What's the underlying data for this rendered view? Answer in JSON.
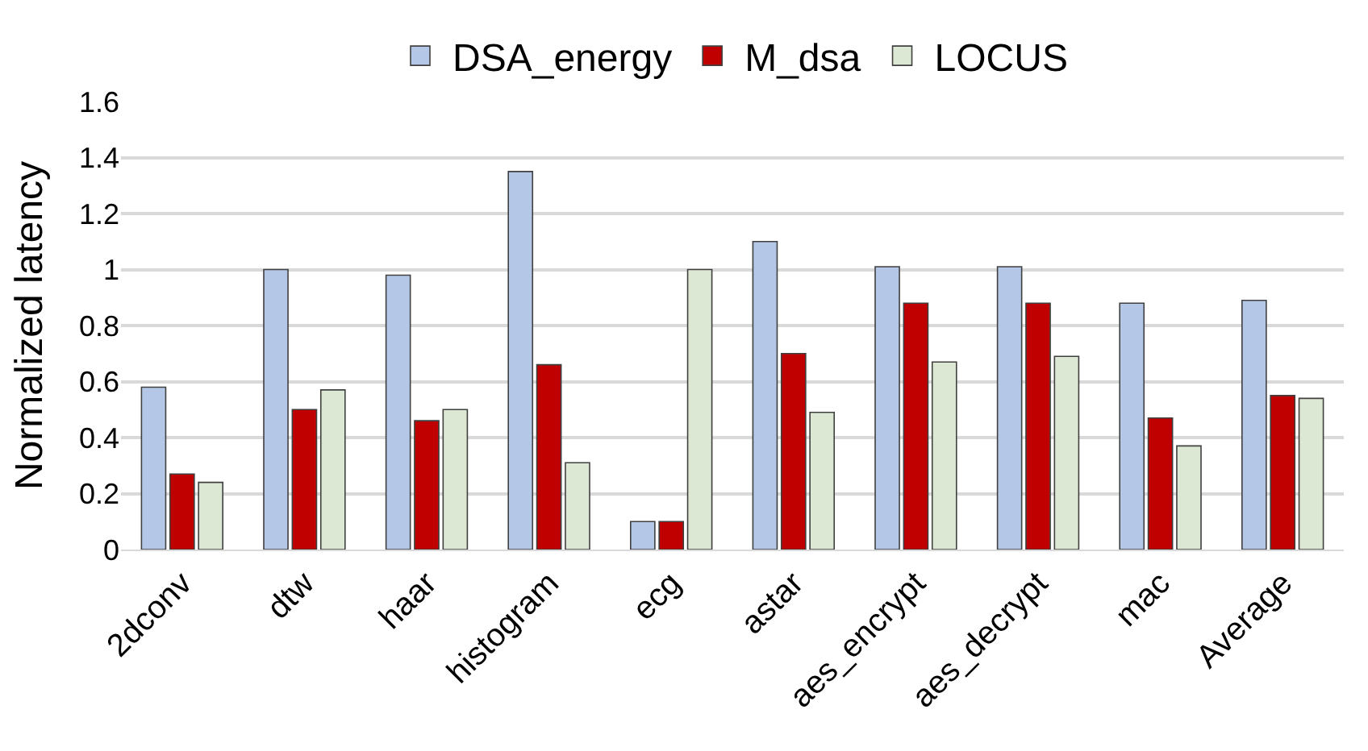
{
  "chart_data": {
    "type": "bar",
    "ylabel": "Normalized latency",
    "categories": [
      "2dconv",
      "dtw",
      "haar",
      "histogram",
      "ecg",
      "astar",
      "aes_encrypt",
      "aes_decrypt",
      "mac",
      "Average"
    ],
    "series": [
      {
        "name": "DSA_energy",
        "color": "#b4c7e7",
        "values": [
          0.58,
          1.0,
          0.98,
          1.35,
          0.1,
          1.1,
          1.01,
          1.01,
          0.88,
          0.89
        ]
      },
      {
        "name": "M_dsa",
        "color": "#c00000",
        "values": [
          0.27,
          0.5,
          0.46,
          0.66,
          0.1,
          0.7,
          0.88,
          0.88,
          0.47,
          0.55
        ]
      },
      {
        "name": "LOCUS",
        "color": "#dce8d4",
        "values": [
          0.24,
          0.57,
          0.5,
          0.31,
          1.0,
          0.49,
          0.67,
          0.69,
          0.37,
          0.54
        ]
      }
    ],
    "ylim": [
      0,
      1.6
    ],
    "yticks": [
      0,
      0.2,
      0.4,
      0.6,
      0.8,
      1,
      1.2,
      1.4,
      1.6
    ],
    "grid": "y",
    "legend": "top"
  }
}
